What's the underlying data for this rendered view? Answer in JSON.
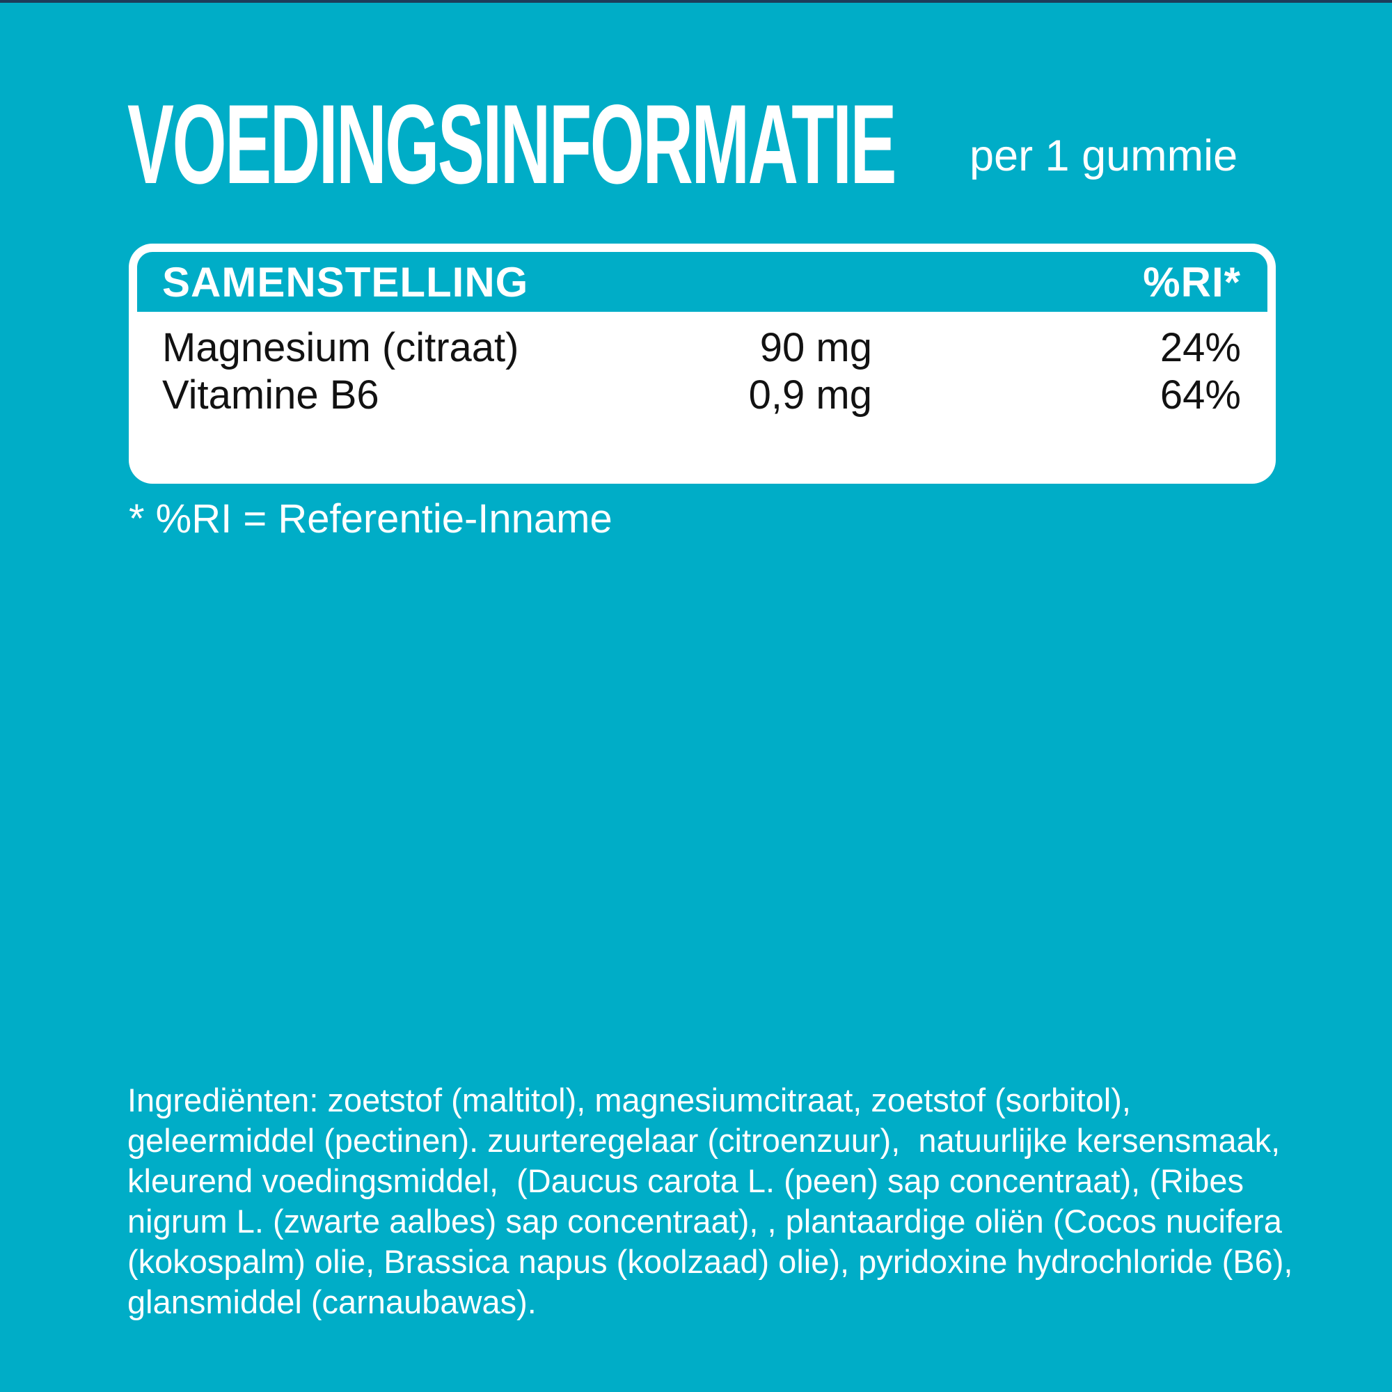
{
  "colors": {
    "background_teal": "#00ADC7",
    "panel_white": "#FFFFFF",
    "text_dark": "#121212",
    "text_light": "#FFFFFF",
    "top_edge_navy": "#1D3C5A"
  },
  "header": {
    "title": "VOEDINGSINFORMATIE",
    "portion": "per 1 gummie"
  },
  "table": {
    "columns": {
      "composition": "SAMENSTELLING",
      "ri": "%RI*"
    },
    "rows": [
      {
        "name": "Magnesium (citraat)",
        "amount": "90 mg",
        "ri": "24%"
      },
      {
        "name": "Vitamine B6",
        "amount": "0,9 mg",
        "ri": "64%"
      }
    ]
  },
  "footnote": "* %RI = Referentie-Inname",
  "ingredients": {
    "lines": [
      "Ingrediënten: zoetstof (maltitol), magnesiumcitraat, zoetstof (sorbitol),",
      "geleermiddel (pectinen). zuurteregelaar (citroenzuur),  natuurlijke kersensmaak,",
      "kleurend voedingsmiddel,  (Daucus carota L. (peen) sap concentraat), (Ribes",
      "nigrum L. (zwarte aalbes) sap concentraat), , plantaardige oliën (Cocos nucifera",
      "(kokospalm) olie, Brassica napus (koolzaad) olie), pyridoxine hydrochloride (B6),",
      "glansmiddel (carnaubawas)."
    ]
  }
}
